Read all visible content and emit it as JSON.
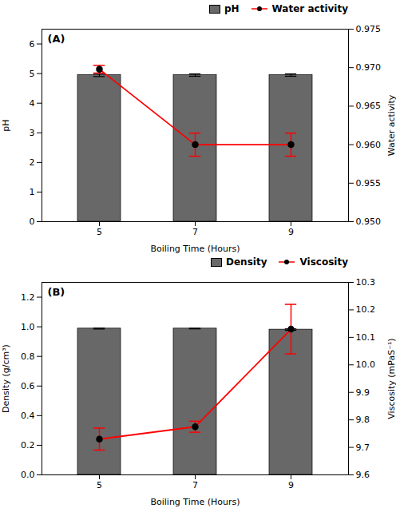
{
  "chart_data": [
    {
      "type": "bar",
      "annotation": "(A)",
      "x_label": "Boiling Time (Hours)",
      "y_label": "pH",
      "y2_label": "Water activity",
      "x": [
        5,
        7,
        9
      ],
      "xlim": [
        3.8,
        10.2
      ],
      "xticks": [
        5,
        7,
        9
      ],
      "ylim": [
        0,
        6.5
      ],
      "yticks": [
        0,
        1,
        2,
        3,
        4,
        5,
        6
      ],
      "y2lim": [
        0.95,
        0.975
      ],
      "y2ticks": [
        {
          "value": 0.95,
          "label": "0.950"
        },
        {
          "value": 0.955,
          "label": "0.955"
        },
        {
          "value": 0.96,
          "label": "0.960"
        },
        {
          "value": 0.965,
          "label": "0.965"
        },
        {
          "value": 0.97,
          "label": "0.970"
        },
        {
          "value": 0.975,
          "label": "0.975"
        }
      ],
      "legend": "upper right",
      "series": [
        {
          "name": "pH",
          "type": "bar",
          "color": "#686868",
          "values": [
            4.95,
            4.95,
            4.95
          ],
          "errors": [
            0.05,
            0.04,
            0.04
          ]
        },
        {
          "name": "Water activity",
          "type": "line",
          "axis": "y2",
          "color": "red",
          "marker": "circle",
          "values": [
            0.9698,
            0.96,
            0.96
          ],
          "errors": [
            0.0005,
            0.0015,
            0.0015
          ]
        }
      ]
    },
    {
      "type": "bar",
      "annotation": "(B)",
      "x_label": "Boiling Time (Hours)",
      "y_label": "Density (g/cm³)",
      "y2_label": "Viscosity (mPaS⁻¹)",
      "x": [
        5,
        7,
        9
      ],
      "xlim": [
        3.8,
        10.2
      ],
      "xticks": [
        5,
        7,
        9
      ],
      "ylim": [
        0,
        1.3
      ],
      "yticks": [
        {
          "value": 0.0,
          "label": "0.0"
        },
        0.2,
        0.4,
        0.6,
        0.8,
        {
          "value": 1.0,
          "label": "1.0"
        },
        1.2
      ],
      "y2lim": [
        9.6,
        10.3
      ],
      "y2ticks": [
        9.6,
        9.7,
        9.8,
        9.9,
        {
          "value": 10.0,
          "label": "10.0"
        },
        10.1,
        10.2,
        10.3
      ],
      "legend": "upper right",
      "series": [
        {
          "name": "Density",
          "type": "bar",
          "color": "#686868",
          "values": [
            0.988,
            0.988,
            0.981
          ],
          "errors": [
            0.003,
            0.002,
            0.005
          ]
        },
        {
          "name": "Viscosity",
          "type": "line",
          "axis": "y2",
          "color": "red",
          "marker": "circle",
          "values": [
            9.73,
            9.775,
            10.13
          ],
          "errors": [
            0.04,
            0.02,
            0.09
          ]
        }
      ]
    }
  ]
}
